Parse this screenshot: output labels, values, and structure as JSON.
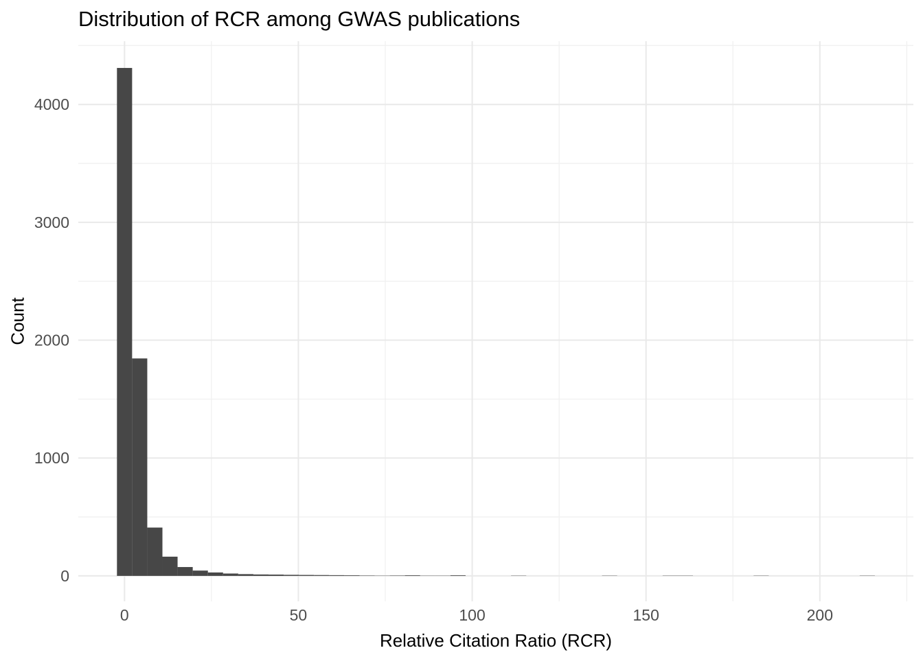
{
  "chart_data": {
    "type": "bar",
    "subtype": "histogram",
    "title": "Distribution of RCR among GWAS publications",
    "xlabel": "Relative Citation Ratio (RCR)",
    "ylabel": "Count",
    "bin_width": 4.36,
    "bin_centers": [
      0,
      4.36,
      8.72,
      13.08,
      17.44,
      21.8,
      26.16,
      30.52,
      34.88,
      39.24,
      43.6,
      47.96,
      52.32,
      56.68,
      61.04,
      65.4,
      69.76,
      74.12,
      78.48,
      82.84,
      87.2,
      91.56,
      95.92,
      100.28,
      104.64,
      109.0,
      113.36,
      117.72,
      122.08,
      126.44,
      130.8,
      135.16,
      139.52,
      143.88,
      148.24,
      152.6,
      156.96,
      161.32,
      165.68,
      170.04,
      174.4,
      178.76,
      183.12,
      187.48,
      191.84,
      196.2,
      200.56,
      204.92,
      209.28,
      213.64
    ],
    "counts": [
      4310,
      1845,
      410,
      163,
      75,
      45,
      29,
      20,
      15,
      12,
      11,
      9,
      8,
      7,
      6,
      5,
      3,
      2,
      3,
      5,
      2,
      2,
      5,
      0,
      0,
      0,
      2,
      0,
      0,
      0,
      0,
      0,
      2,
      0,
      0,
      0,
      2,
      2,
      0,
      0,
      0,
      0,
      2,
      0,
      0,
      0,
      0,
      0,
      0,
      2
    ],
    "x_ticks": [
      0,
      50,
      100,
      150,
      200
    ],
    "y_ticks": [
      0,
      1000,
      2000,
      3000,
      4000
    ],
    "x_minor_gridlines": [
      25,
      75,
      125,
      175,
      225
    ],
    "y_minor_gridlines": [
      500,
      1500,
      2500,
      3500,
      4500
    ],
    "xlim": [
      -13.3,
      226.9
    ],
    "ylim": [
      -216,
      4537
    ],
    "grid": true,
    "legend": "none",
    "theme": "minimal-white",
    "colors": {
      "bar_fill": "#474747",
      "grid_major": "#e9e9e9",
      "grid_minor": "#f1f1f1",
      "tick_label": "#4d4d4d",
      "axis_title": "#000000",
      "title": "#000000",
      "background": "#ffffff"
    }
  }
}
